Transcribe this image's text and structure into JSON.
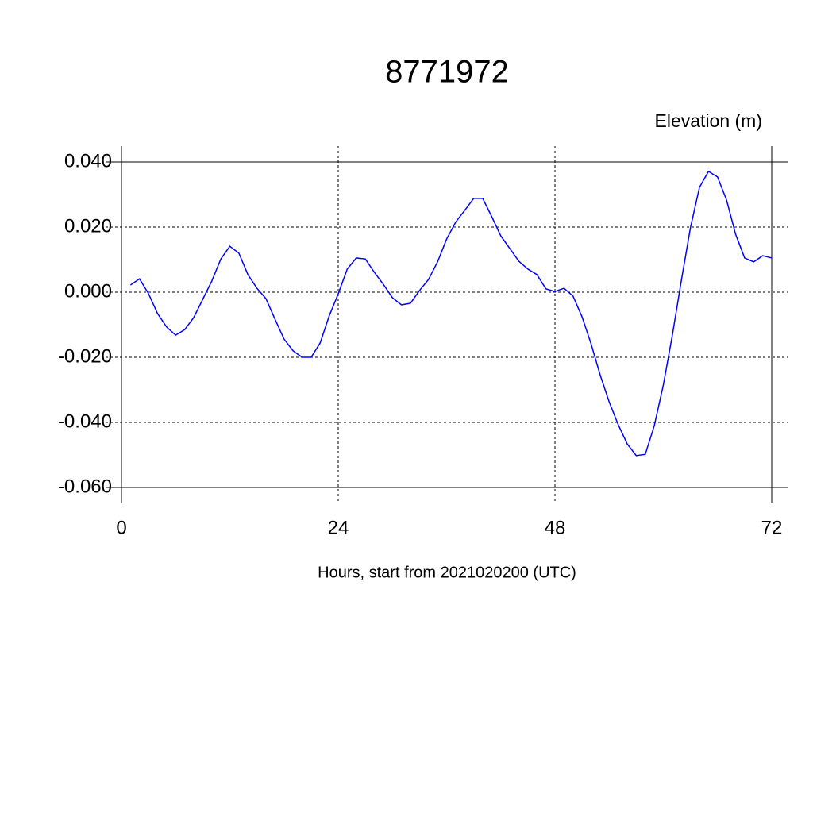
{
  "chart_data": {
    "type": "line",
    "title": "8771972",
    "ylabel": "Elevation (m)",
    "xlabel": "Hours, start from 2021020200 (UTC)",
    "x": [
      1,
      2,
      3,
      4,
      5,
      6,
      7,
      8,
      9,
      10,
      11,
      12,
      13,
      14,
      15,
      16,
      17,
      18,
      19,
      20,
      21,
      22,
      23,
      24,
      25,
      26,
      27,
      28,
      29,
      30,
      31,
      32,
      33,
      34,
      35,
      36,
      37,
      38,
      39,
      40,
      41,
      42,
      43,
      44,
      45,
      46,
      47,
      48,
      49,
      50,
      51,
      52,
      53,
      54,
      55,
      56,
      57,
      58,
      59,
      60,
      61,
      62,
      63,
      64,
      65,
      66,
      67,
      68,
      69,
      70,
      71,
      72
    ],
    "series": [
      {
        "color": "#0000ff",
        "values": [
          0.0022,
          0.0041,
          -0.0005,
          -0.0066,
          -0.0107,
          -0.0132,
          -0.0115,
          -0.0078,
          -0.0022,
          0.0034,
          0.0102,
          0.0141,
          0.012,
          0.0054,
          0.0012,
          -0.002,
          -0.0083,
          -0.0144,
          -0.018,
          -0.02,
          -0.02,
          -0.0156,
          -0.0073,
          -0.0005,
          0.0071,
          0.0105,
          0.0102,
          0.0061,
          0.0024,
          -0.0017,
          -0.0039,
          -0.0034,
          0.0005,
          0.0039,
          0.0093,
          0.0163,
          0.0215,
          0.0251,
          0.0288,
          0.0288,
          0.0232,
          0.0173,
          0.0134,
          0.0095,
          0.0071,
          0.0054,
          0.001,
          0.0002,
          0.0012,
          -0.0012,
          -0.0076,
          -0.0159,
          -0.0254,
          -0.0337,
          -0.0407,
          -0.0466,
          -0.0502,
          -0.0498,
          -0.041,
          -0.0285,
          -0.0132,
          0.0037,
          0.0198,
          0.0322,
          0.0371,
          0.0354,
          0.0283,
          0.0178,
          0.0105,
          0.0093,
          0.0112,
          0.0105
        ]
      }
    ],
    "xlim": [
      0,
      72
    ],
    "xticks": [
      0,
      24,
      48,
      72
    ],
    "ylim": [
      -0.06,
      0.04
    ],
    "yticks": [
      {
        "value": 0.04,
        "label": "0.040"
      },
      {
        "value": 0.02,
        "label": "0.020"
      },
      {
        "value": 0,
        "label": "0.000"
      },
      {
        "value": -0.02,
        "label": "-0.020"
      },
      {
        "value": -0.04,
        "label": "-0.040"
      },
      {
        "value": -0.06,
        "label": "-0.060"
      }
    ],
    "grid": true
  }
}
